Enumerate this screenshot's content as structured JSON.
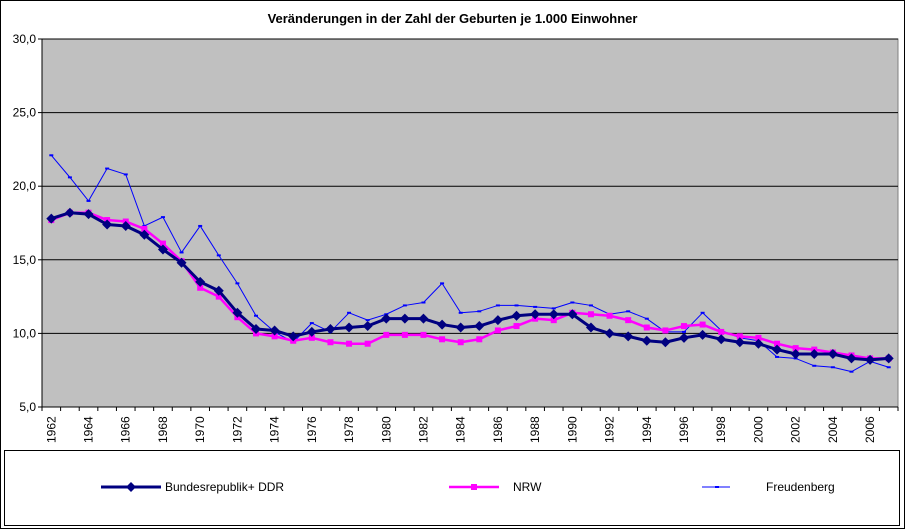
{
  "chart_data": {
    "type": "line",
    "title": "Veränderungen in der Zahl der Geburten je 1.000 Einwohner",
    "xlabel": "",
    "ylabel": "",
    "ylim": [
      5,
      30
    ],
    "yticks": [
      "5,0",
      "10,0",
      "15,0",
      "20,0",
      "25,0",
      "30,0"
    ],
    "yticks_values": [
      5,
      10,
      15,
      20,
      25,
      30
    ],
    "x": [
      1962,
      1963,
      1964,
      1965,
      1966,
      1967,
      1968,
      1969,
      1970,
      1971,
      1972,
      1973,
      1974,
      1975,
      1976,
      1977,
      1978,
      1979,
      1980,
      1981,
      1982,
      1983,
      1984,
      1985,
      1986,
      1987,
      1988,
      1989,
      1990,
      1991,
      1992,
      1993,
      1994,
      1995,
      1996,
      1997,
      1998,
      1999,
      2000,
      2001,
      2002,
      2003,
      2004,
      2005,
      2006,
      2007
    ],
    "xticks": [
      "1962",
      "1964",
      "1966",
      "1968",
      "1970",
      "1972",
      "1974",
      "1976",
      "1978",
      "1980",
      "1982",
      "1984",
      "1986",
      "1988",
      "1990",
      "1992",
      "1994",
      "1996",
      "1998",
      "2000",
      "2002",
      "2004",
      "2006"
    ],
    "grid": true,
    "plot_background": "#c0c0c0",
    "legend_position": "bottom",
    "series": [
      {
        "name": "Bundesrepublik+ DDR",
        "color": "#000080",
        "marker": "diamond",
        "values": [
          17.8,
          18.2,
          18.1,
          17.4,
          17.3,
          16.7,
          15.7,
          14.8,
          13.5,
          12.9,
          11.4,
          10.3,
          10.2,
          9.8,
          10.1,
          10.3,
          10.4,
          10.5,
          11.0,
          11.0,
          11.0,
          10.6,
          10.4,
          10.5,
          10.9,
          11.2,
          11.3,
          11.3,
          11.3,
          10.4,
          10.0,
          9.8,
          9.5,
          9.4,
          9.7,
          9.9,
          9.6,
          9.4,
          9.3,
          8.9,
          8.6,
          8.6,
          8.6,
          8.3,
          8.2,
          8.3
        ]
      },
      {
        "name": "NRW",
        "color": "#ff00ff",
        "marker": "square",
        "values": [
          17.7,
          18.2,
          18.2,
          17.7,
          17.6,
          17.1,
          16.1,
          14.9,
          13.1,
          12.5,
          11.1,
          10.0,
          9.8,
          9.5,
          9.7,
          9.4,
          9.3,
          9.3,
          9.9,
          9.9,
          9.9,
          9.6,
          9.4,
          9.6,
          10.2,
          10.5,
          11.0,
          10.9,
          11.4,
          11.3,
          11.2,
          10.9,
          10.4,
          10.2,
          10.5,
          10.6,
          10.1,
          9.8,
          9.7,
          9.3,
          9.0,
          8.9,
          8.7,
          8.5,
          8.3,
          8.3
        ]
      },
      {
        "name": "Freudenberg",
        "color": "#0000ff",
        "marker": "dash",
        "values": [
          22.1,
          20.6,
          19.0,
          21.2,
          20.8,
          17.3,
          17.9,
          15.5,
          17.3,
          15.3,
          13.4,
          11.2,
          10.1,
          9.4,
          10.7,
          10.1,
          11.4,
          10.9,
          11.3,
          11.9,
          12.1,
          13.4,
          11.4,
          11.5,
          11.9,
          11.9,
          11.8,
          11.7,
          12.1,
          11.9,
          11.3,
          11.5,
          11.0,
          10.1,
          10.1,
          11.4,
          10.2,
          9.7,
          9.5,
          8.4,
          8.3,
          7.8,
          7.7,
          7.4,
          8.1,
          7.7
        ]
      }
    ]
  }
}
